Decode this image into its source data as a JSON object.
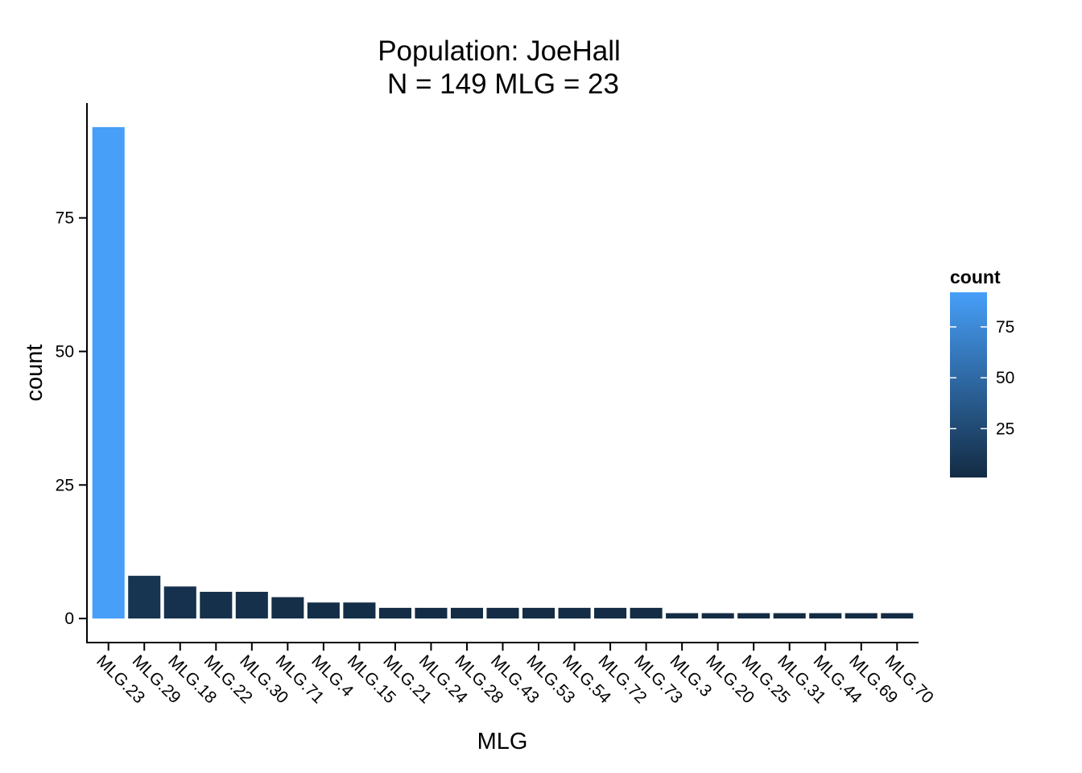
{
  "chart_data": {
    "type": "bar",
    "title": "Population: JoeHall",
    "subtitle": "N = 149 MLG = 23",
    "xlabel": "MLG",
    "ylabel": "count",
    "categories": [
      "MLG.23",
      "MLG.29",
      "MLG.18",
      "MLG.22",
      "MLG.30",
      "MLG.71",
      "MLG.4",
      "MLG.15",
      "MLG.21",
      "MLG.24",
      "MLG.28",
      "MLG.43",
      "MLG.53",
      "MLG.54",
      "MLG.72",
      "MLG.73",
      "MLG.3",
      "MLG.20",
      "MLG.25",
      "MLG.31",
      "MLG.44",
      "MLG.69",
      "MLG.70"
    ],
    "values": [
      92,
      8,
      6,
      5,
      5,
      4,
      3,
      3,
      2,
      2,
      2,
      2,
      2,
      2,
      2,
      2,
      1,
      1,
      1,
      1,
      1,
      1,
      1
    ],
    "y_ticks": [
      0,
      25,
      50,
      75
    ],
    "ylim": [
      -4.5,
      96.5
    ],
    "grid": false,
    "legend": {
      "title": "count",
      "position": "right",
      "ticks": [
        25,
        50,
        75
      ],
      "range": [
        1,
        92
      ],
      "color_low": "#132B43",
      "color_high": "#479FF8"
    }
  }
}
